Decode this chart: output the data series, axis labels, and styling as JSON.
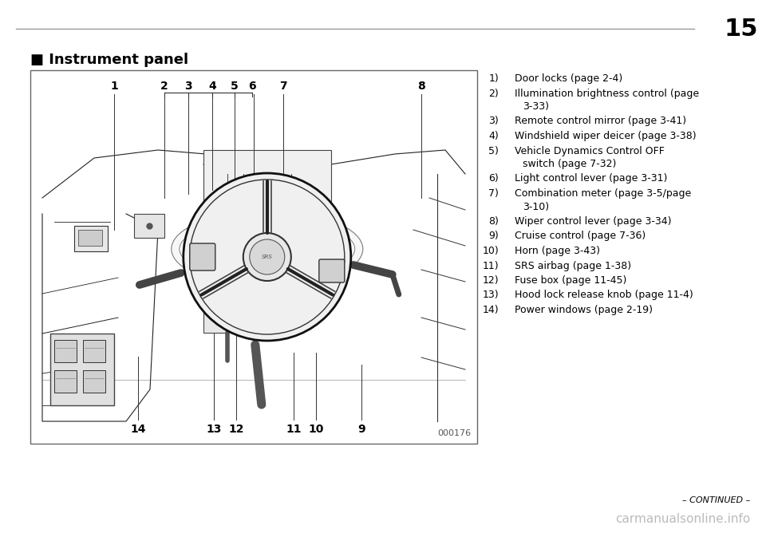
{
  "page_number": "15",
  "section_title": "■ Instrument panel",
  "diagram_label": "000176",
  "items_plain": [
    [
      "1)",
      "Door locks (page 2-4)"
    ],
    [
      "2)",
      "Illumination brightness control (page\n    3-33)"
    ],
    [
      "3)",
      "Remote control mirror (page 3-41)"
    ],
    [
      "4)",
      "Windshield wiper deicer (page 3-38)"
    ],
    [
      "5)",
      "Vehicle Dynamics Control OFF\n    switch (page 7-32)"
    ],
    [
      "6)",
      "Light control lever (page 3-31)"
    ],
    [
      "7)",
      "Combination meter (page 3-5/page\n    3-10)"
    ],
    [
      "8)",
      "Wiper control lever (page 3-34)"
    ],
    [
      "9)",
      "Cruise control (page 7-36)"
    ],
    [
      "10)",
      "Horn (page 3-43)"
    ],
    [
      "11)",
      "SRS airbag (page 1-38)"
    ],
    [
      "12)",
      "Fuse box (page 11-45)"
    ],
    [
      "13)",
      "Hood lock release knob (page 11-4)"
    ],
    [
      "14)",
      "Power windows (page 2-19)"
    ]
  ],
  "continued_text": "– CONTINUED –",
  "watermark": "carmanualsonline.info",
  "bg_color": "#ffffff",
  "text_color": "#000000",
  "rule_color": "#999999"
}
